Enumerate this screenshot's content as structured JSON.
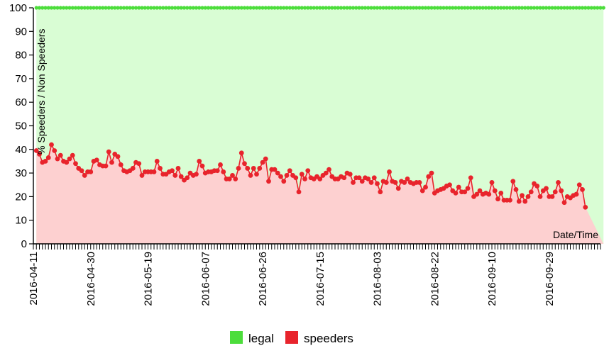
{
  "chart_data": {
    "type": "area",
    "title": "",
    "xlabel": "Date/Time",
    "ylabel": "% Speeders / Non Speeders",
    "ylim": [
      0,
      100
    ],
    "yticks": [
      "0",
      "10",
      "20",
      "30",
      "40",
      "50",
      "60",
      "70",
      "80",
      "90",
      "100"
    ],
    "x_start": "2016-04-11",
    "x_end": "2016-10-16",
    "xtick_labels": [
      "2016-04-11",
      "2016-04-30",
      "2016-05-19",
      "2016-06-07",
      "2016-06-26",
      "2016-07-15",
      "2016-08-03",
      "2016-08-22",
      "2016-09-10",
      "2016-09-29"
    ],
    "grid": false,
    "legend_position": "bottom-center",
    "colors": {
      "legal": "#4cdd3b",
      "legal_fill": "#d9fdd4",
      "speeders": "#e8242c",
      "speeders_fill": "#fdd0d0"
    },
    "series": [
      {
        "name": "legal",
        "values": [
          100,
          100,
          100,
          100,
          100,
          100,
          100,
          100,
          100,
          100,
          100,
          100,
          100,
          100,
          100,
          100,
          100,
          100,
          100,
          100,
          100,
          100,
          100,
          100,
          100,
          100,
          100,
          100,
          100,
          100,
          100,
          100,
          100,
          100,
          100,
          100,
          100,
          100,
          100,
          100,
          100,
          100,
          100,
          100,
          100,
          100,
          100,
          100,
          100,
          100,
          100,
          100,
          100,
          100,
          100,
          100,
          100,
          100,
          100,
          100,
          100,
          100,
          100,
          100,
          100,
          100,
          100,
          100,
          100,
          100,
          100,
          100,
          100,
          100,
          100,
          100,
          100,
          100,
          100,
          100,
          100,
          100,
          100,
          100,
          100,
          100,
          100,
          100,
          100,
          100,
          100,
          100,
          100,
          100,
          100,
          100,
          100,
          100,
          100,
          100,
          100,
          100,
          100,
          100,
          100,
          100,
          100,
          100,
          100,
          100,
          100,
          100,
          100,
          100,
          100,
          100,
          100,
          100,
          100,
          100,
          100,
          100,
          100,
          100,
          100,
          100,
          100,
          100,
          100,
          100,
          100,
          100,
          100,
          100,
          100,
          100,
          100,
          100,
          100,
          100,
          100,
          100,
          100,
          100,
          100,
          100,
          100,
          100,
          100,
          100,
          100,
          100,
          100,
          100,
          100,
          100,
          100,
          100,
          100,
          100,
          100,
          100,
          100,
          100,
          100,
          100,
          100,
          100,
          100,
          100,
          100,
          100,
          100,
          100,
          100,
          100,
          100,
          100,
          100,
          100,
          100,
          100,
          100,
          100,
          100,
          100,
          100,
          100,
          100
        ]
      },
      {
        "name": "speeders",
        "values": [
          39.5,
          38,
          34.5,
          35,
          36.5,
          42,
          39.5,
          36,
          37.5,
          35,
          34.5,
          36,
          37.5,
          34,
          32,
          31,
          29,
          30.5,
          30.5,
          35,
          35.5,
          33.5,
          33,
          33,
          39,
          34.5,
          38,
          37,
          33.5,
          31,
          30.5,
          31,
          32,
          34.5,
          34,
          29,
          30.5,
          30.5,
          30.5,
          30.5,
          35,
          32,
          29.5,
          29.5,
          30.5,
          31,
          29,
          32,
          28.5,
          27,
          28,
          30,
          29,
          29.5,
          35,
          33,
          30,
          30.5,
          30.5,
          31,
          31,
          33.5,
          30.5,
          27.5,
          27.5,
          29,
          27.5,
          32,
          38.5,
          34,
          32,
          29,
          32,
          29.5,
          32,
          34.5,
          36,
          26.5,
          31.5,
          31.5,
          30,
          28.5,
          26.5,
          29,
          31,
          29,
          28,
          22,
          29.5,
          27.5,
          31,
          28,
          27.5,
          28.5,
          27.5,
          29,
          30,
          31.5,
          28.5,
          27.5,
          27.5,
          28.5,
          28,
          30,
          29.5,
          26,
          28,
          28,
          26.5,
          28,
          27.5,
          26,
          28,
          25.5,
          22,
          26.5,
          26,
          30.5,
          26.5,
          26,
          23.5,
          26.5,
          26,
          27.5,
          26,
          25.5,
          26,
          26,
          22.5,
          24,
          28.5,
          30,
          21.5,
          22.5,
          23,
          23.5,
          24.5,
          25,
          22.5,
          21.5,
          24,
          22,
          22,
          23.5,
          28,
          20,
          21,
          22.5,
          21,
          21.5,
          21,
          26,
          22.5,
          19,
          21.5,
          18.5,
          18.5,
          18.5,
          26.5,
          23,
          18,
          20.5,
          18,
          20,
          22,
          25.5,
          24.5,
          20,
          22.5,
          23.5,
          20,
          20,
          22,
          26,
          22.5,
          17.5,
          20,
          19.5,
          20.5,
          21,
          25,
          23,
          15.5
        ]
      }
    ]
  }
}
